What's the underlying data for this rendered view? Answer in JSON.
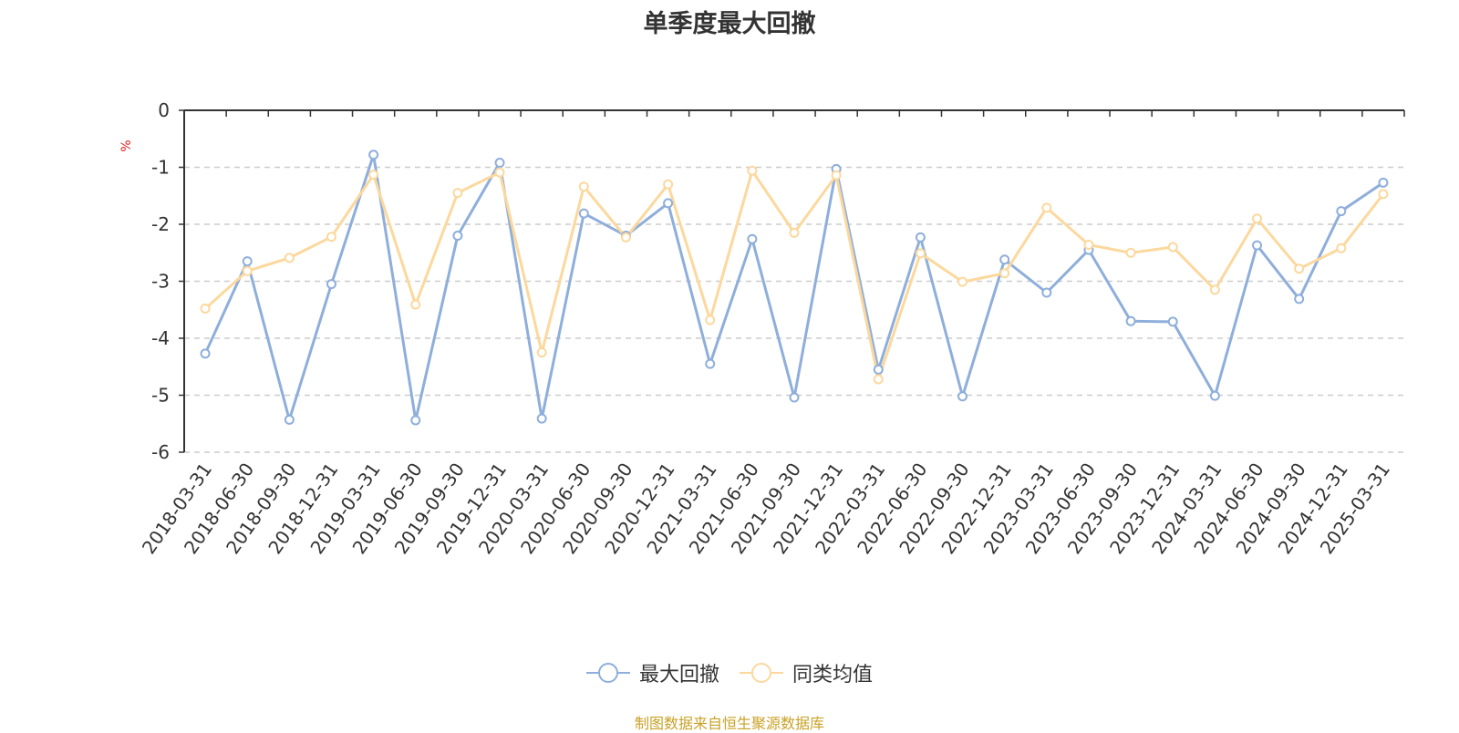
{
  "chart_data": {
    "type": "line",
    "title": "单季度最大回撤",
    "ylabel": "%",
    "ylim": [
      -6,
      0
    ],
    "yticks": [
      0,
      -1,
      -2,
      -3,
      -4,
      -5,
      -6
    ],
    "grid": true,
    "legend_position": "bottom",
    "categories": [
      "2018-03-31",
      "2018-06-30",
      "2018-09-30",
      "2018-12-31",
      "2019-03-31",
      "2019-06-30",
      "2019-09-30",
      "2019-12-31",
      "2020-03-31",
      "2020-06-30",
      "2020-09-30",
      "2020-12-31",
      "2021-03-31",
      "2021-06-30",
      "2021-09-30",
      "2021-12-31",
      "2022-03-31",
      "2022-06-30",
      "2022-09-30",
      "2022-12-31",
      "2023-03-31",
      "2023-06-30",
      "2023-09-30",
      "2023-12-31",
      "2024-03-31",
      "2024-06-30",
      "2024-09-30",
      "2024-12-31",
      "2025-03-31"
    ],
    "series": [
      {
        "name": "最大回撤",
        "color": "#8eaedb",
        "values": [
          -4.27,
          -2.65,
          -5.43,
          -3.05,
          -0.78,
          -5.44,
          -2.2,
          -0.92,
          -5.41,
          -1.81,
          -2.2,
          -1.63,
          -4.45,
          -2.26,
          -5.04,
          -1.03,
          -4.55,
          -2.23,
          -5.02,
          -2.62,
          -3.2,
          -2.45,
          -3.7,
          -3.71,
          -5.01,
          -2.37,
          -3.31,
          -1.77,
          -1.27
        ]
      },
      {
        "name": "同类均值",
        "color": "#fcd89d",
        "values": [
          -3.48,
          -2.82,
          -2.59,
          -2.22,
          -1.13,
          -3.41,
          -1.45,
          -1.09,
          -4.25,
          -1.34,
          -2.23,
          -1.3,
          -3.68,
          -1.06,
          -2.15,
          -1.14,
          -4.72,
          -2.51,
          -3.01,
          -2.86,
          -1.71,
          -2.36,
          -2.5,
          -2.4,
          -3.15,
          -1.9,
          -2.78,
          -2.42,
          -1.47
        ]
      }
    ]
  },
  "footer": {
    "source": "制图数据来自恒生聚源数据库"
  }
}
